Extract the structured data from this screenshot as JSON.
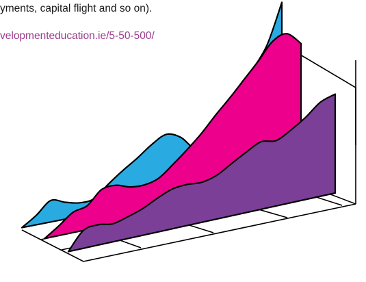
{
  "text": {
    "caption_tail": "yments, capital flight and so on).",
    "source_url": "velopmenteducation.ie/5-50-500/"
  },
  "colors": {
    "link": "#9b3a8c",
    "series_back": "#29abe2",
    "series_middle": "#ec008c",
    "series_front": "#7b3f98",
    "outline": "#000000"
  },
  "chart_data": {
    "type": "area",
    "style": "3d stacked ridgeline, no axis labels or tick labels",
    "x": [
      0,
      1,
      2,
      3,
      4,
      5,
      6,
      7,
      8,
      9,
      10,
      11,
      12,
      13,
      14,
      15,
      16,
      17,
      18
    ],
    "series": [
      {
        "color": "#29abe2",
        "values": [
          2,
          10,
          20,
          16,
          13,
          14,
          24,
          33,
          41,
          50,
          56,
          51,
          39,
          42,
          59,
          76,
          96,
          115,
          148
        ]
      },
      {
        "color": "#ec008c",
        "values": [
          2,
          10,
          19,
          22,
          33,
          34,
          30,
          29,
          32,
          41,
          51,
          62,
          75,
          87,
          100,
          113,
          127,
          131,
          120
        ]
      },
      {
        "color": "#7b3f98",
        "values": [
          2,
          17,
          19,
          17,
          20,
          24,
          30,
          35,
          36,
          35,
          38,
          45,
          52,
          58,
          56,
          62,
          70,
          80,
          84
        ]
      }
    ],
    "grid": true,
    "legend": "none"
  }
}
